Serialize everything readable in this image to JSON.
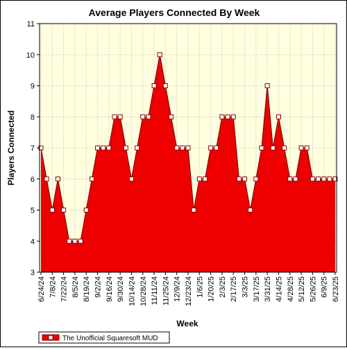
{
  "chart_data": {
    "type": "area",
    "title": "Average Players Connected By Week",
    "xlabel": "Week",
    "ylabel": "Players Connected",
    "ylim": [
      3,
      11
    ],
    "yticks": [
      3,
      4,
      5,
      6,
      7,
      8,
      9,
      10,
      11
    ],
    "grid": true,
    "legend_position": "bottom-left",
    "x_tick_labels": [
      "6/24/24",
      "7/8/24",
      "7/22/24",
      "8/5/24",
      "8/19/24",
      "9/2/24",
      "9/16/24",
      "9/30/24",
      "10/14/24",
      "10/28/24",
      "11/11/24",
      "11/25/24",
      "12/9/24",
      "12/23/24",
      "1/6/25",
      "1/20/25",
      "2/3/25",
      "2/17/25",
      "3/3/25",
      "3/17/25",
      "3/31/25",
      "4/14/25",
      "4/28/25",
      "5/12/25",
      "5/26/25",
      "6/9/25",
      "6/23/25"
    ],
    "series": [
      {
        "name": "The Unofficial Squaresoft MUD",
        "color": "#ee0000",
        "x": [
          "6/24/24",
          "7/1/24",
          "7/8/24",
          "7/15/24",
          "7/22/24",
          "7/29/24",
          "8/5/24",
          "8/12/24",
          "8/19/24",
          "8/26/24",
          "9/2/24",
          "9/9/24",
          "9/16/24",
          "9/23/24",
          "9/30/24",
          "10/7/24",
          "10/14/24",
          "10/21/24",
          "10/28/24",
          "11/4/24",
          "11/11/24",
          "11/18/24",
          "11/25/24",
          "12/2/24",
          "12/9/24",
          "12/16/24",
          "12/23/24",
          "12/30/24",
          "1/6/25",
          "1/13/25",
          "1/20/25",
          "1/27/25",
          "2/3/25",
          "2/10/25",
          "2/17/25",
          "2/24/25",
          "3/3/25",
          "3/10/25",
          "3/17/25",
          "3/24/25",
          "3/31/25",
          "4/7/25",
          "4/14/25",
          "4/21/25",
          "4/28/25",
          "5/5/25",
          "5/12/25",
          "5/19/25",
          "5/26/25",
          "6/2/25",
          "6/9/25",
          "6/16/25",
          "6/23/25"
        ],
        "values": [
          7,
          6,
          5,
          6,
          5,
          4,
          4,
          4,
          5,
          6,
          7,
          7,
          7,
          8,
          8,
          7,
          6,
          7,
          8,
          8,
          9,
          10,
          9,
          8,
          7,
          7,
          7,
          5,
          6,
          6,
          7,
          7,
          8,
          8,
          8,
          6,
          6,
          5,
          6,
          7,
          9,
          7,
          8,
          7,
          6,
          6,
          7,
          7,
          6,
          6,
          6,
          6,
          6
        ]
      }
    ]
  },
  "colors": {
    "plot_background": "#ffffdf",
    "area_fill": "#ee0000",
    "line": "#8b0000",
    "marker_fill": "#ffffff"
  }
}
